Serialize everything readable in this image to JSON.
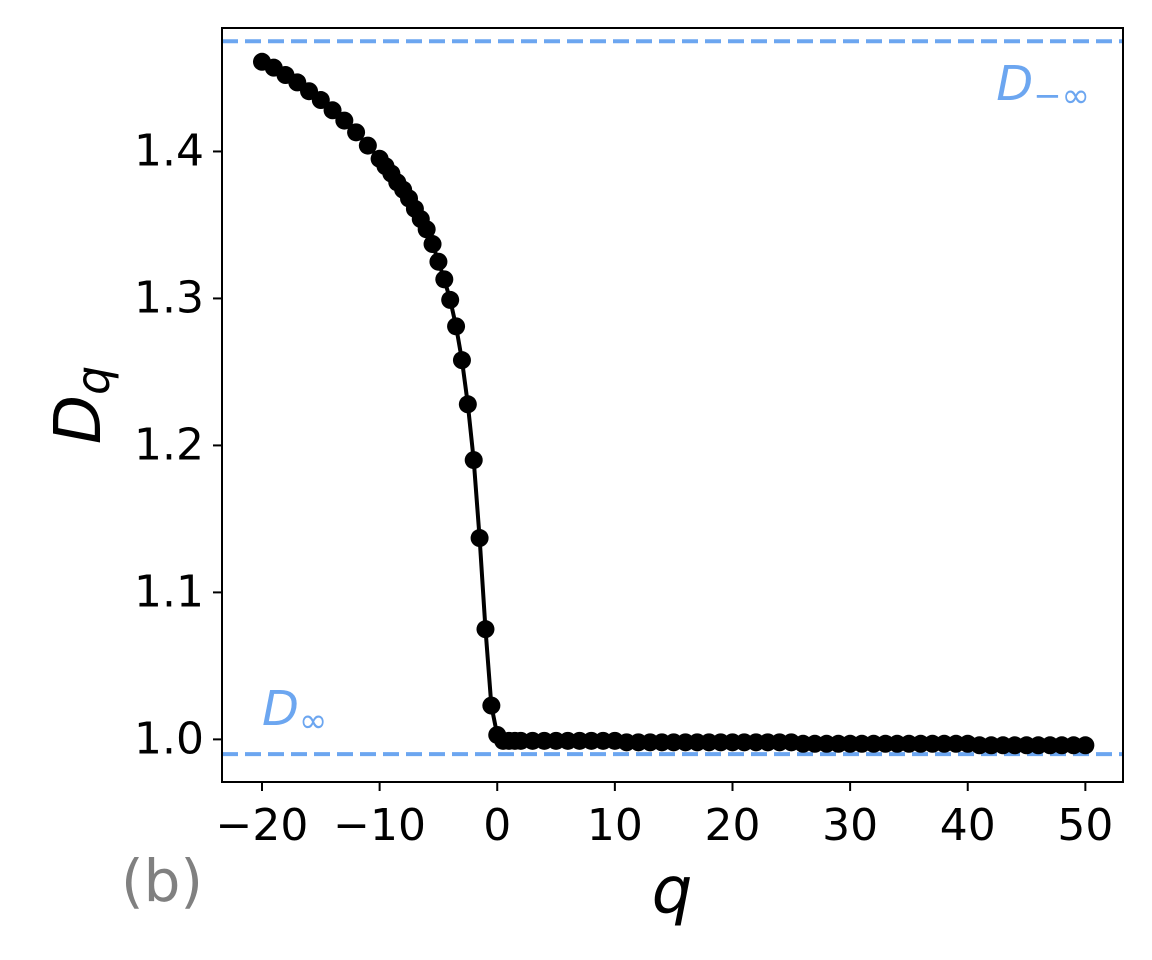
{
  "chart_data": {
    "type": "line",
    "xlabel": "q",
    "ylabel": {
      "main": "D",
      "sub": "q"
    },
    "panel_label": "(b)",
    "color": "#000000",
    "x": [
      -20,
      -19,
      -18,
      -17,
      -16,
      -15,
      -14,
      -13,
      -12,
      -11,
      -10,
      -9.5,
      -9,
      -8.5,
      -8,
      -7.5,
      -7,
      -6.5,
      -6,
      -5.5,
      -5,
      -4.5,
      -4,
      -3.5,
      -3,
      -2.5,
      -2,
      -1.5,
      -1,
      -0.5,
      0,
      0.5,
      1,
      1.5,
      2,
      3,
      4,
      5,
      6,
      7,
      8,
      9,
      10,
      11,
      12,
      13,
      14,
      15,
      16,
      17,
      18,
      19,
      20,
      21,
      22,
      23,
      24,
      25,
      26,
      27,
      28,
      29,
      30,
      31,
      32,
      33,
      34,
      35,
      36,
      37,
      38,
      39,
      40,
      41,
      42,
      43,
      44,
      45,
      46,
      47,
      48,
      49,
      50
    ],
    "values": [
      1.461,
      1.457,
      1.452,
      1.447,
      1.441,
      1.435,
      1.428,
      1.421,
      1.413,
      1.404,
      1.395,
      1.39,
      1.385,
      1.379,
      1.374,
      1.368,
      1.361,
      1.354,
      1.347,
      1.337,
      1.325,
      1.313,
      1.299,
      1.281,
      1.258,
      1.228,
      1.19,
      1.137,
      1.075,
      1.023,
      1.003,
      0.999,
      0.999,
      0.999,
      0.999,
      0.999,
      0.999,
      0.999,
      0.999,
      0.999,
      0.999,
      0.999,
      0.999,
      0.998,
      0.998,
      0.998,
      0.998,
      0.998,
      0.998,
      0.998,
      0.998,
      0.998,
      0.998,
      0.998,
      0.998,
      0.998,
      0.998,
      0.998,
      0.997,
      0.997,
      0.997,
      0.997,
      0.997,
      0.997,
      0.997,
      0.997,
      0.997,
      0.997,
      0.997,
      0.997,
      0.997,
      0.997,
      0.997,
      0.996,
      0.996,
      0.996,
      0.996,
      0.996,
      0.996,
      0.996,
      0.996,
      0.996,
      0.996
    ],
    "xlim": [
      -23.4,
      53.2
    ],
    "ylim": [
      0.971,
      1.484
    ],
    "xticks": [
      {
        "value": -20,
        "label": "−20"
      },
      {
        "value": -10,
        "label": "−10"
      },
      0,
      10,
      20,
      30,
      40,
      50
    ],
    "yticks": [
      {
        "value": 1,
        "label": "1.0"
      },
      1.1,
      1.2,
      1.3,
      1.4
    ],
    "hlines": [
      {
        "value": 1.475,
        "color": "#6ca6f0",
        "label": {
          "main": "D",
          "sub": "−∞"
        }
      },
      {
        "value": 0.99,
        "color": "#6ca6f0",
        "label": {
          "main": "D",
          "sub": "∞"
        }
      }
    ]
  }
}
